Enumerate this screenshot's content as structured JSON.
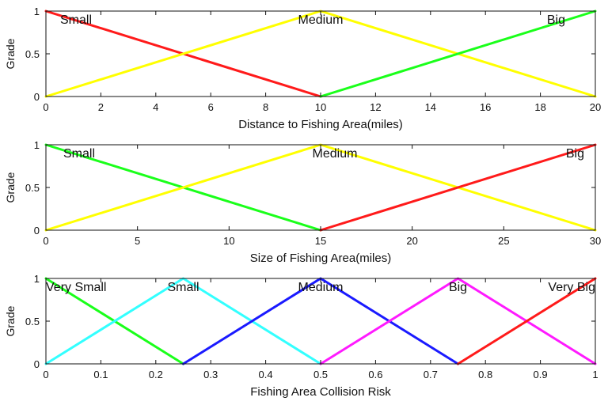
{
  "chart_data": [
    {
      "type": "line",
      "xlabel": "Distance to Fishing Area(miles)",
      "ylabel": "Grade",
      "xlim": [
        0,
        20
      ],
      "ylim": [
        0,
        1
      ],
      "xticks": [
        0,
        2,
        4,
        6,
        8,
        10,
        12,
        14,
        16,
        18,
        20
      ],
      "yticks": [
        0,
        0.5,
        1
      ],
      "grid": false,
      "series": [
        {
          "name": "Small",
          "color": "#ff1a1a",
          "x": [
            0,
            10
          ],
          "y": [
            1,
            0
          ]
        },
        {
          "name": "Medium",
          "color": "#ffff00",
          "x": [
            0,
            10,
            20
          ],
          "y": [
            0,
            1,
            0
          ]
        },
        {
          "name": "Big",
          "color": "#1aff1a",
          "x": [
            10,
            20
          ],
          "y": [
            0,
            1
          ]
        }
      ]
    },
    {
      "type": "line",
      "xlabel": "Size of Fishing Area(miles)",
      "ylabel": "Grade",
      "xlim": [
        0,
        30
      ],
      "ylim": [
        0,
        1
      ],
      "xticks": [
        0,
        5,
        10,
        15,
        20,
        25,
        30
      ],
      "yticks": [
        0,
        0.5,
        1
      ],
      "grid": false,
      "series": [
        {
          "name": "Small",
          "color": "#1aff1a",
          "x": [
            0,
            15
          ],
          "y": [
            1,
            0
          ]
        },
        {
          "name": "Medium",
          "color": "#ffff00",
          "x": [
            0,
            15,
            30
          ],
          "y": [
            0,
            1,
            0
          ]
        },
        {
          "name": "Big",
          "color": "#ff1a1a",
          "x": [
            15,
            30
          ],
          "y": [
            0,
            1
          ]
        }
      ]
    },
    {
      "type": "line",
      "xlabel": "Fishing Area Collision Risk",
      "ylabel": "Grade",
      "xlim": [
        0,
        1
      ],
      "ylim": [
        0,
        1
      ],
      "xticks": [
        0,
        0.1,
        0.2,
        0.3,
        0.4,
        0.5,
        0.6,
        0.7,
        0.8,
        0.9,
        1
      ],
      "yticks": [
        0,
        0.5,
        1
      ],
      "grid": false,
      "series": [
        {
          "name": "Very Small",
          "color": "#1aff1a",
          "x": [
            0,
            0.25
          ],
          "y": [
            1,
            0
          ]
        },
        {
          "name": "Small",
          "color": "#33ffff",
          "x": [
            0,
            0.25,
            0.5
          ],
          "y": [
            0,
            1,
            0
          ]
        },
        {
          "name": "Medium",
          "color": "#1a1aff",
          "x": [
            0.25,
            0.5,
            0.75
          ],
          "y": [
            0,
            1,
            0
          ]
        },
        {
          "name": "Big",
          "color": "#ff1aff",
          "x": [
            0.5,
            0.75,
            1
          ],
          "y": [
            0,
            1,
            0
          ]
        },
        {
          "name": "Very Big",
          "color": "#ff1a1a",
          "x": [
            0.75,
            1
          ],
          "y": [
            0,
            1
          ]
        }
      ]
    }
  ]
}
